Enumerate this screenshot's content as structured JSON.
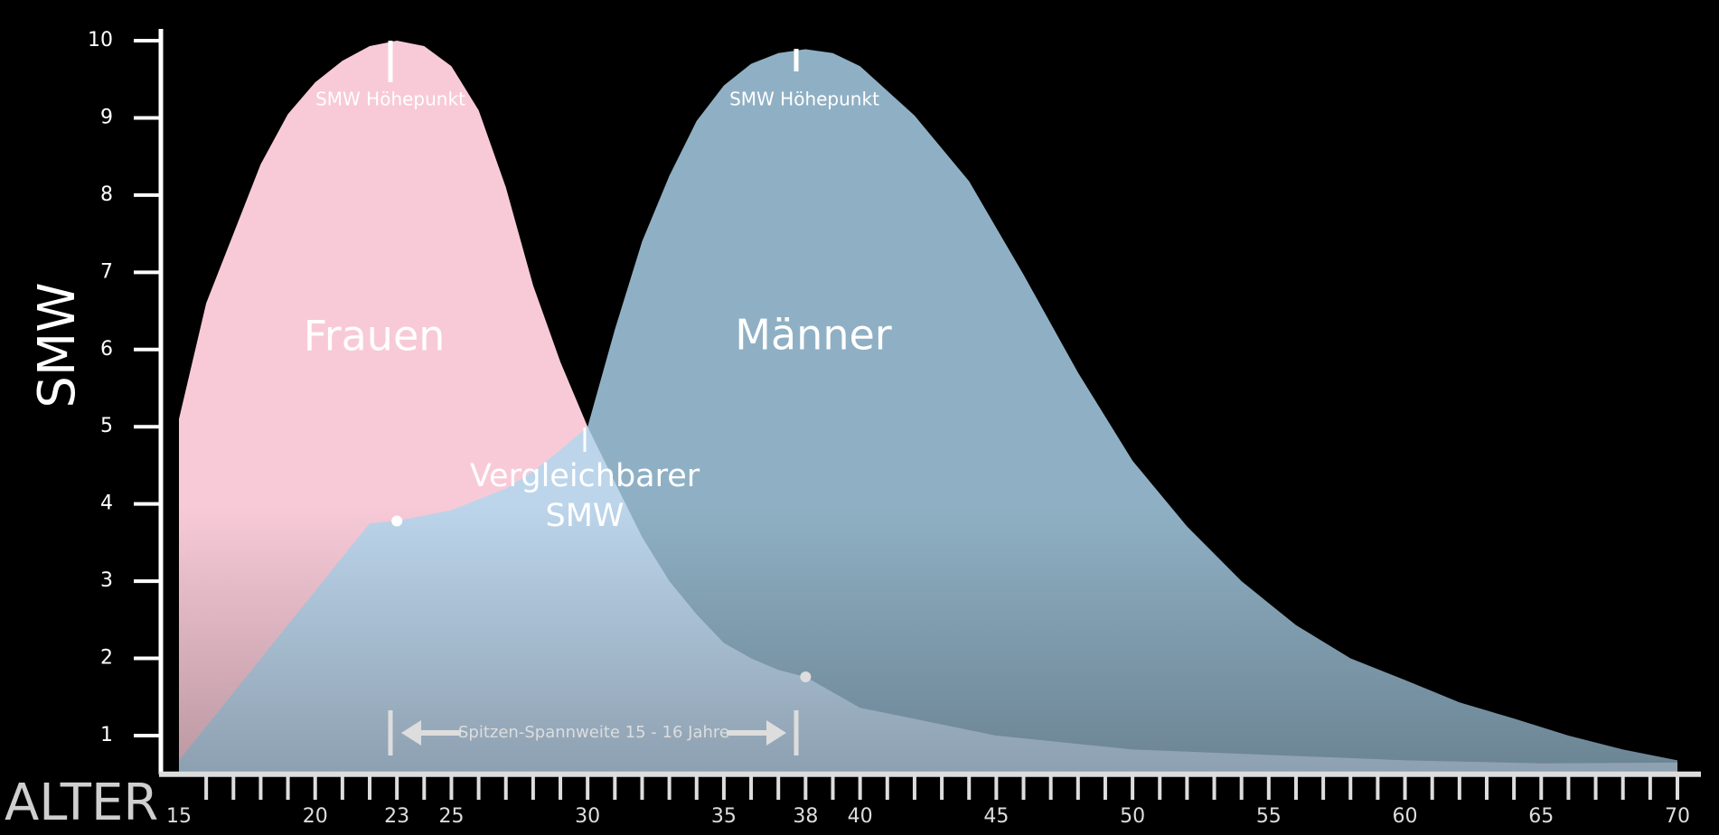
{
  "chart_data": {
    "type": "area",
    "ylabel": "SMW",
    "xlabel": "ALTER",
    "xlim": [
      15,
      70
    ],
    "ylim": [
      0.5,
      10.1
    ],
    "xticks": [
      15,
      20,
      23,
      25,
      30,
      35,
      38,
      40,
      45,
      50,
      55,
      60,
      65,
      70
    ],
    "xminorticks": [
      16,
      17,
      18,
      19,
      20,
      21,
      22,
      23,
      24,
      25,
      26,
      27,
      28,
      29,
      30,
      31,
      32,
      33,
      34,
      35,
      36,
      37,
      38,
      39,
      40,
      41,
      42,
      43,
      44,
      45,
      46,
      47,
      48,
      49,
      50,
      51,
      52,
      53,
      54,
      55,
      56,
      57,
      58,
      59,
      60,
      61,
      62,
      63,
      64,
      65,
      66,
      67,
      68,
      69,
      70
    ],
    "yticks": [
      1,
      2,
      3,
      4,
      5,
      6,
      7,
      8,
      9,
      10
    ],
    "series": [
      {
        "name": "Frauen",
        "color": "#f8cad8",
        "x": [
          15,
          16,
          17,
          18,
          19,
          20,
          21,
          22,
          23,
          24,
          25,
          26,
          27,
          28,
          29,
          30,
          31,
          32,
          33,
          34,
          35,
          36,
          37,
          38,
          40,
          45,
          50,
          55,
          60,
          65,
          70
        ],
        "values": [
          5.1,
          6.6,
          7.5,
          8.4,
          9.05,
          9.46,
          9.74,
          9.93,
          10,
          9.93,
          9.67,
          9.1,
          8.1,
          6.83,
          5.84,
          5.0,
          4.28,
          3.57,
          3.0,
          2.57,
          2.2,
          2.0,
          1.85,
          1.76,
          1.36,
          1.0,
          0.82,
          0.75,
          0.68,
          0.64,
          0.65
        ]
      },
      {
        "name": "Männer",
        "color": "#aed7ef",
        "x": [
          15,
          22,
          23,
          24,
          25,
          26,
          27,
          28,
          29,
          30,
          31,
          32,
          33,
          34,
          35,
          36,
          37,
          38,
          39,
          40,
          42,
          44,
          46,
          48,
          50,
          52,
          54,
          56,
          58,
          60,
          62,
          64,
          66,
          68,
          70
        ],
        "values": [
          0.68,
          3.75,
          3.78,
          3.85,
          3.92,
          4.06,
          4.2,
          4.42,
          4.7,
          5.0,
          6.26,
          7.4,
          8.25,
          8.96,
          9.42,
          9.7,
          9.84,
          9.89,
          9.84,
          9.67,
          9.03,
          8.18,
          6.97,
          5.7,
          4.56,
          3.71,
          3.0,
          2.43,
          2.0,
          1.72,
          1.43,
          1.22,
          1.0,
          0.82,
          0.68
        ]
      }
    ],
    "annotations": {
      "peak_label": "SMW Höhepunkt",
      "comparable_line1": "Vergleichbarer",
      "comparable_line2": "SMW",
      "span": "Spitzen-Spannweite 15 - 16 Jahre"
    }
  }
}
